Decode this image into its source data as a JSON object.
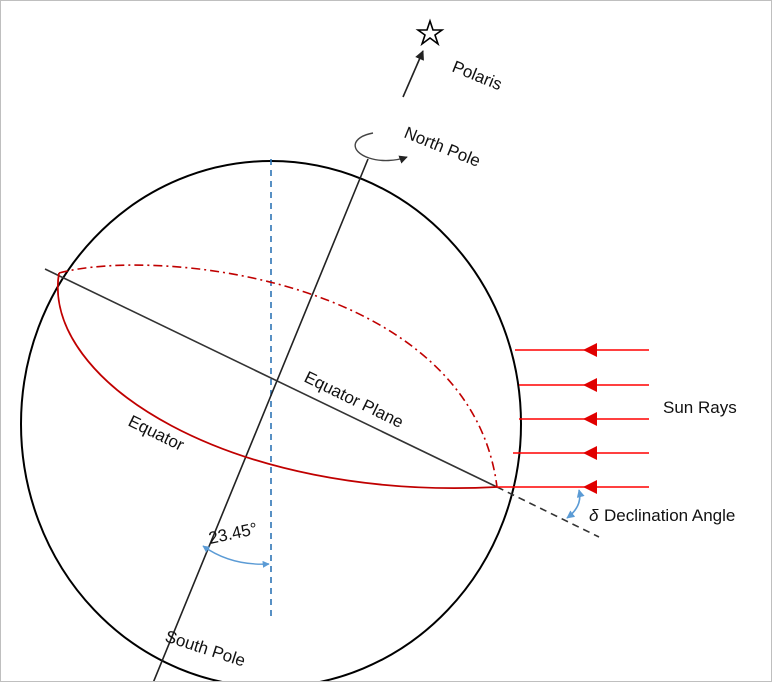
{
  "labels": {
    "polaris": "Polaris",
    "north_pole": "North Pole",
    "equator_plane": "Equator Plane",
    "equator": "Equator",
    "sun_rays": "Sun Rays",
    "tilt_angle": "23.45°",
    "delta_symbol": "δ",
    "declination_angle": "Declination Angle",
    "south_pole": "South Pole"
  },
  "colors": {
    "outline": "#000000",
    "equator": "#c00000",
    "sun_ray": "#ff0000",
    "vertical_dashed": "#2e75b6",
    "angle_arc": "#5b9bd5"
  },
  "icons": {
    "polaris": "star-icon",
    "rotation": "rotation-arrow-icon"
  },
  "sun_ray_count": 5
}
